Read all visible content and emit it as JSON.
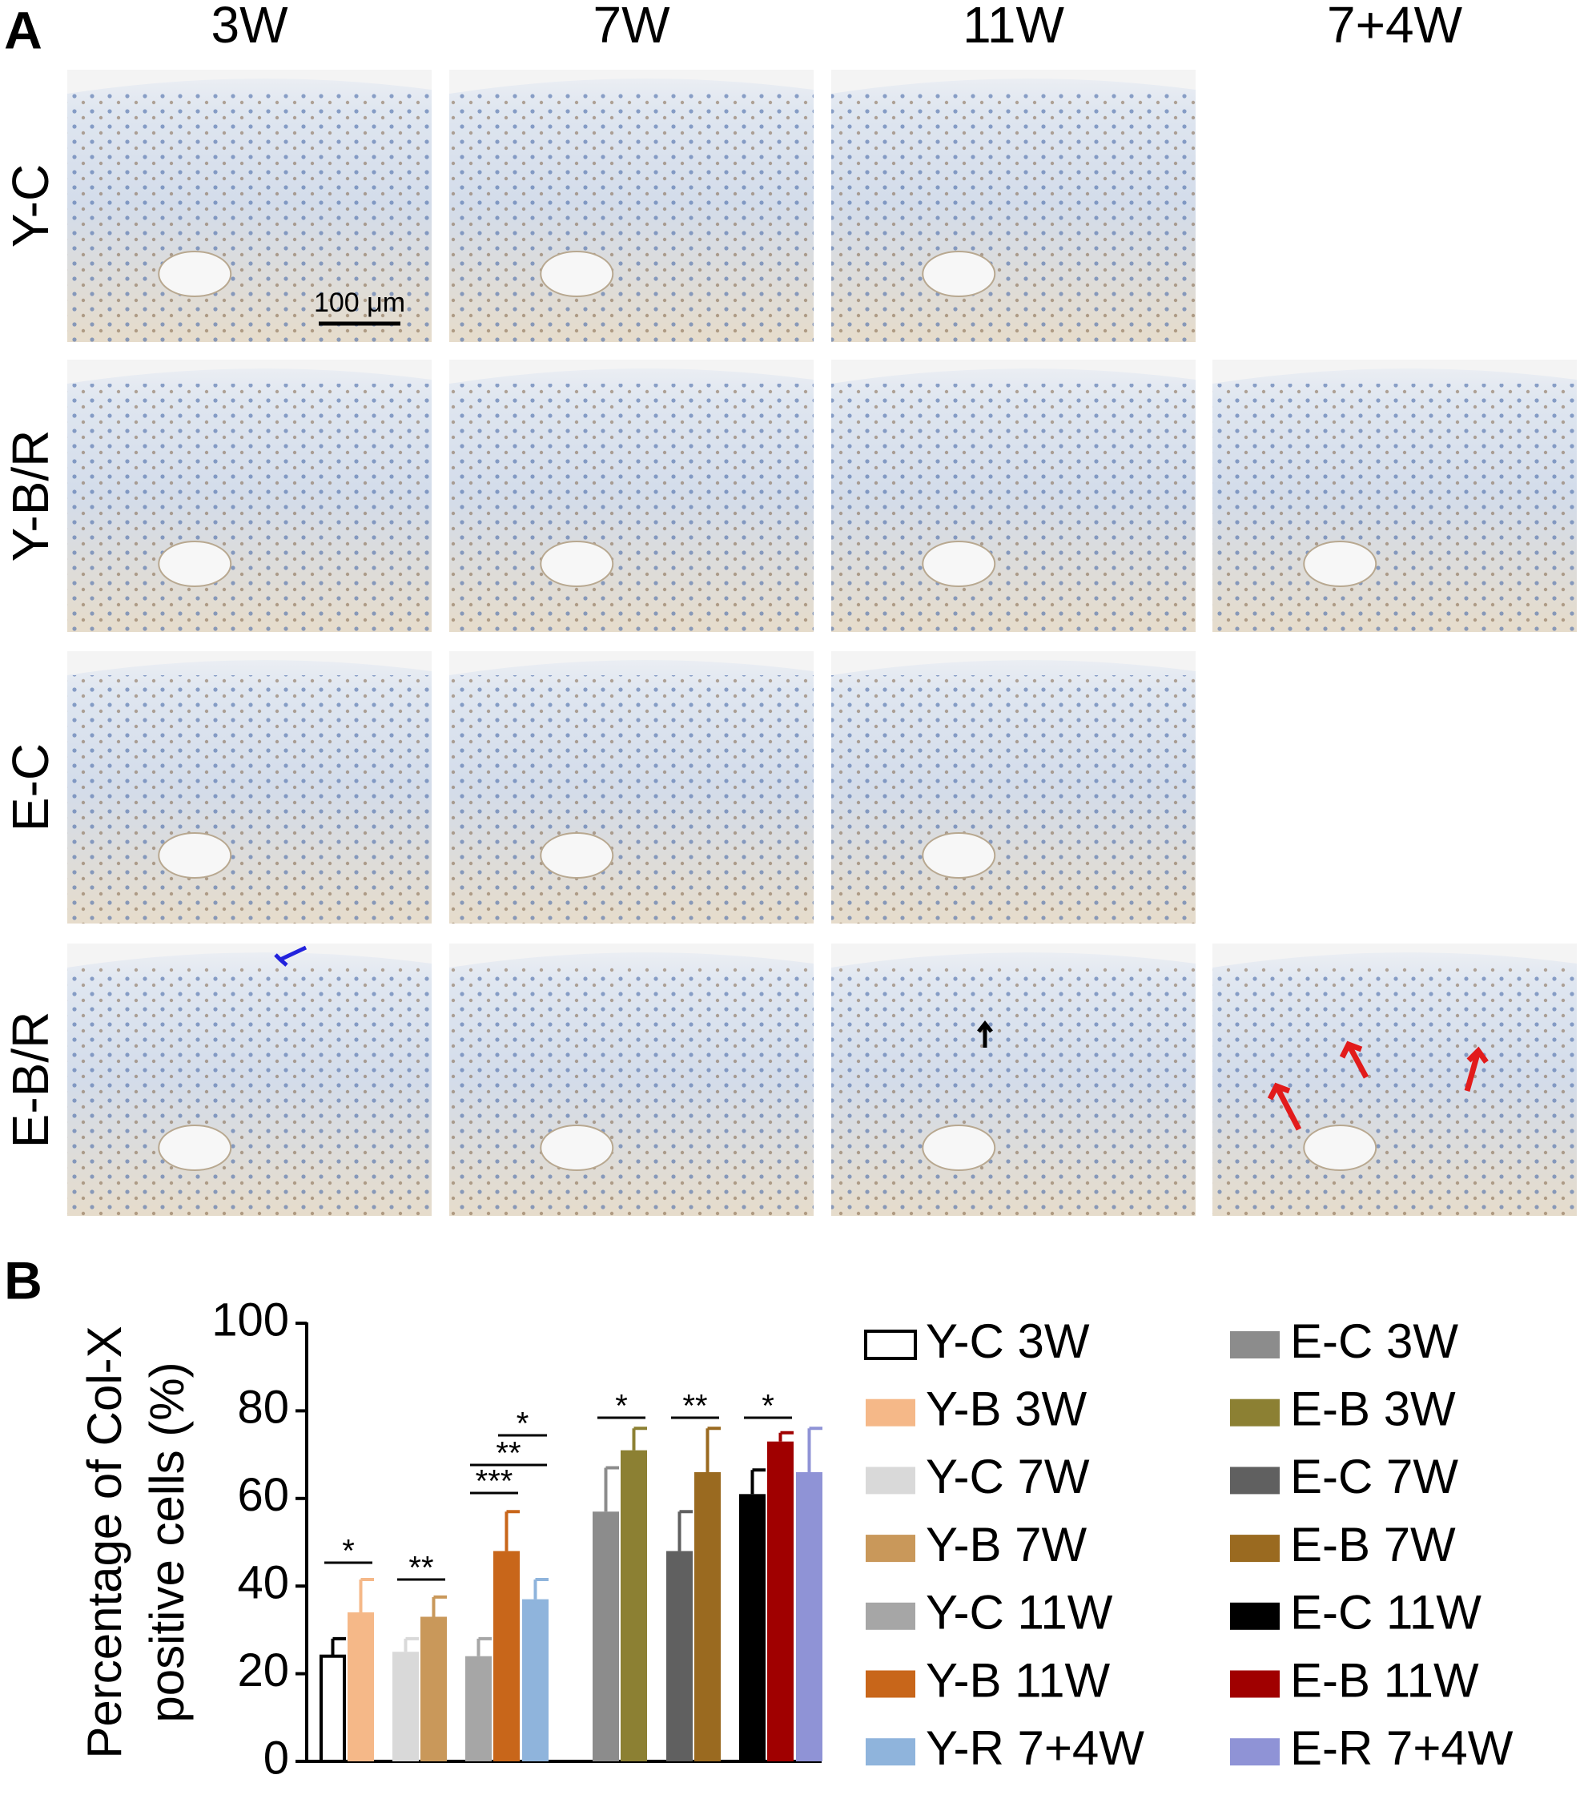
{
  "panel_a": {
    "label": "A",
    "columns": [
      "3W",
      "7W",
      "11W",
      "7+4W"
    ],
    "rows": [
      "Y-C",
      "Y-B/R",
      "E-C",
      "E-B/R"
    ],
    "scale_bar": "100 μm"
  },
  "chart_data": {
    "type": "bar",
    "panel_label": "B",
    "ylabel": [
      "Percentage of Col-X",
      "positive cells (%)"
    ],
    "ylim": [
      0,
      100
    ],
    "yticks": [
      0,
      20,
      40,
      60,
      80,
      100
    ],
    "series": [
      {
        "name": "Y-C 3W",
        "color": "#ffffff",
        "edgecolor": "#000000",
        "values": [
          24
        ],
        "errors": [
          4
        ]
      },
      {
        "name": "Y-B 3W",
        "color": "#f5b888",
        "values": [
          34
        ],
        "errors": [
          7.5
        ]
      },
      {
        "name": "Y-C 7W",
        "color": "#d9d9d9",
        "values": [
          25
        ],
        "errors": [
          3
        ]
      },
      {
        "name": "Y-B 7W",
        "color": "#c9985a",
        "values": [
          33
        ],
        "errors": [
          4.5
        ]
      },
      {
        "name": "Y-C 11W",
        "color": "#a6a6a6",
        "values": [
          24
        ],
        "errors": [
          4
        ]
      },
      {
        "name": "Y-B 11W",
        "color": "#c8661a",
        "values": [
          48
        ],
        "errors": [
          9
        ]
      },
      {
        "name": "Y-R 7+4W",
        "color": "#8fb4dc",
        "values": [
          37
        ],
        "errors": [
          4.5
        ]
      },
      {
        "name": "E-C 3W",
        "color": "#8c8c8c",
        "values": [
          57
        ],
        "errors": [
          10
        ]
      },
      {
        "name": "E-B 3W",
        "color": "#8c8033",
        "values": [
          71
        ],
        "errors": [
          5
        ]
      },
      {
        "name": "E-C 7W",
        "color": "#606060",
        "values": [
          48
        ],
        "errors": [
          9
        ]
      },
      {
        "name": "E-B 7W",
        "color": "#9a6a20",
        "values": [
          66
        ],
        "errors": [
          10
        ]
      },
      {
        "name": "E-C 11W",
        "color": "#000000",
        "values": [
          61
        ],
        "errors": [
          5.5
        ]
      },
      {
        "name": "E-B 11W",
        "color": "#a00000",
        "values": [
          73
        ],
        "errors": [
          2
        ]
      },
      {
        "name": "E-R 7+4W",
        "color": "#8f93d6",
        "values": [
          66
        ],
        "errors": [
          10
        ]
      }
    ],
    "annotations": [
      "*",
      "**",
      "***",
      "**",
      "*",
      "*",
      "**",
      "*"
    ]
  }
}
